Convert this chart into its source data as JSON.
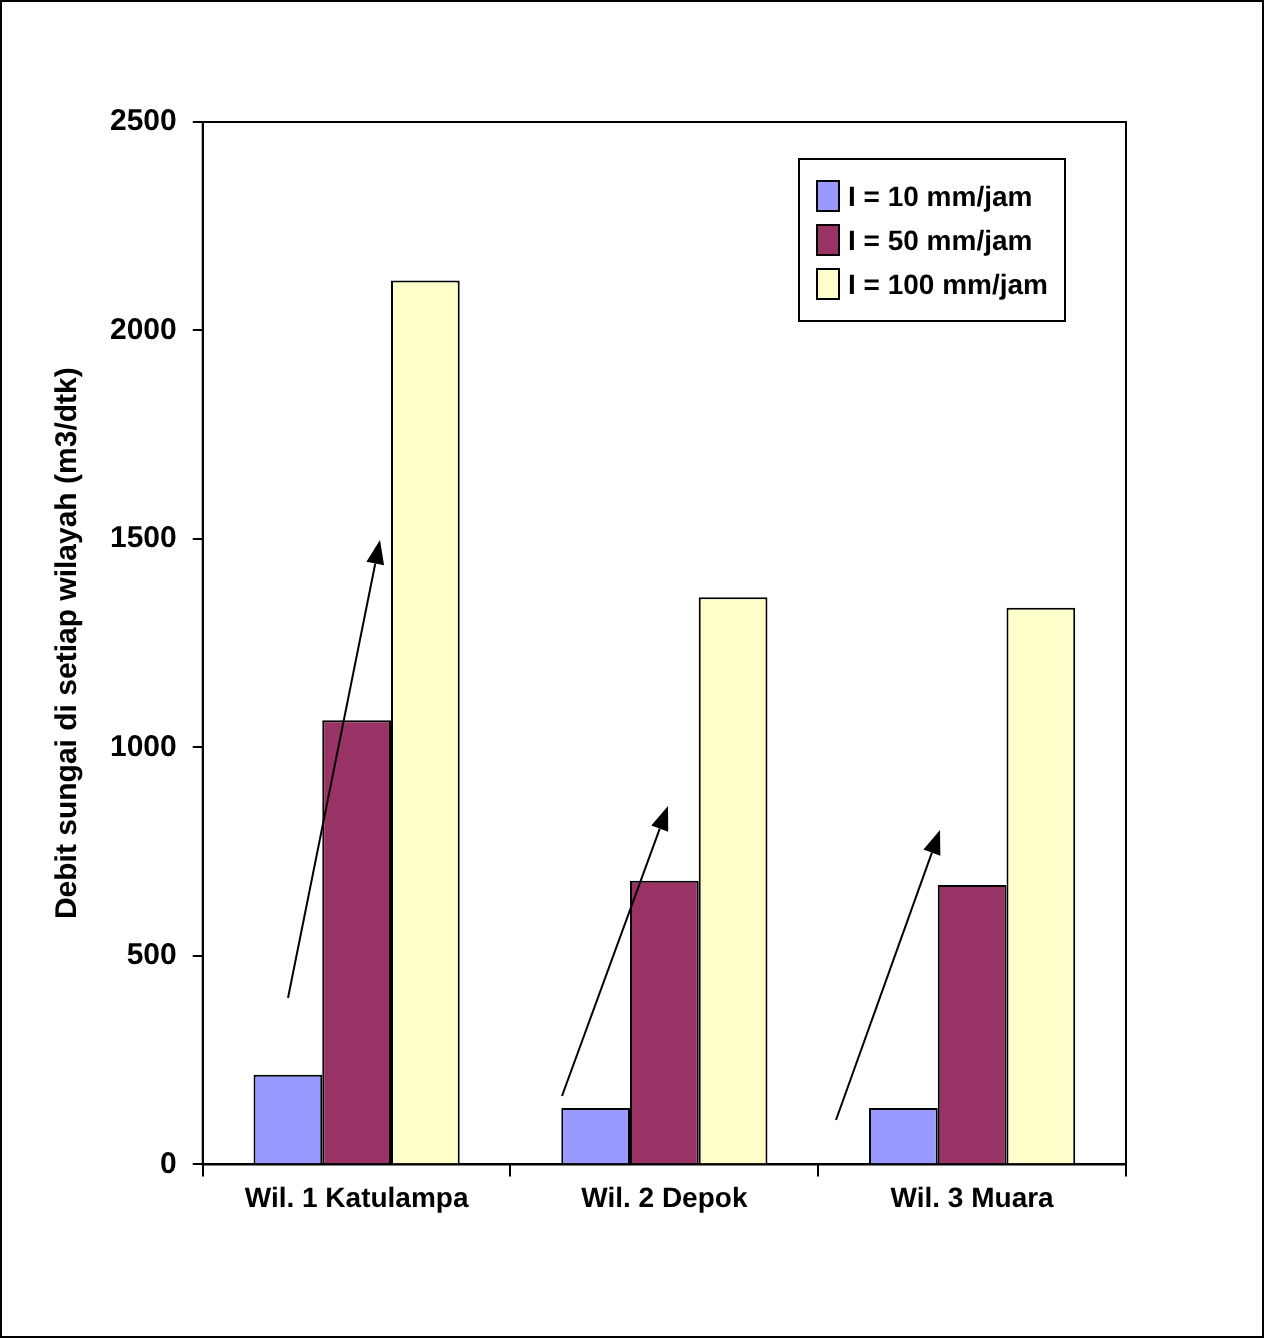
{
  "chart_data": {
    "type": "bar",
    "ylabel": "Debit sungai di setiap wilayah (m3/dtk)",
    "categories": [
      "Wil. 1 Katulampa",
      "Wil. 2 Depok",
      "Wil. 3 Muara"
    ],
    "series": [
      {
        "name": "I = 10 mm/jam",
        "color": "#9999ff",
        "values": [
          215,
          135,
          135
        ]
      },
      {
        "name": "I = 50 mm/jam",
        "color": "#993366",
        "values": [
          1065,
          680,
          670
        ]
      },
      {
        "name": "I = 100 mm/jam",
        "color": "#ffffcc",
        "values": [
          2120,
          1360,
          1335
        ]
      }
    ],
    "ylim": [
      0,
      2500
    ],
    "yticks": [
      0,
      500,
      1000,
      1500,
      2000,
      2500
    ],
    "grid": false,
    "legend": "top right"
  }
}
